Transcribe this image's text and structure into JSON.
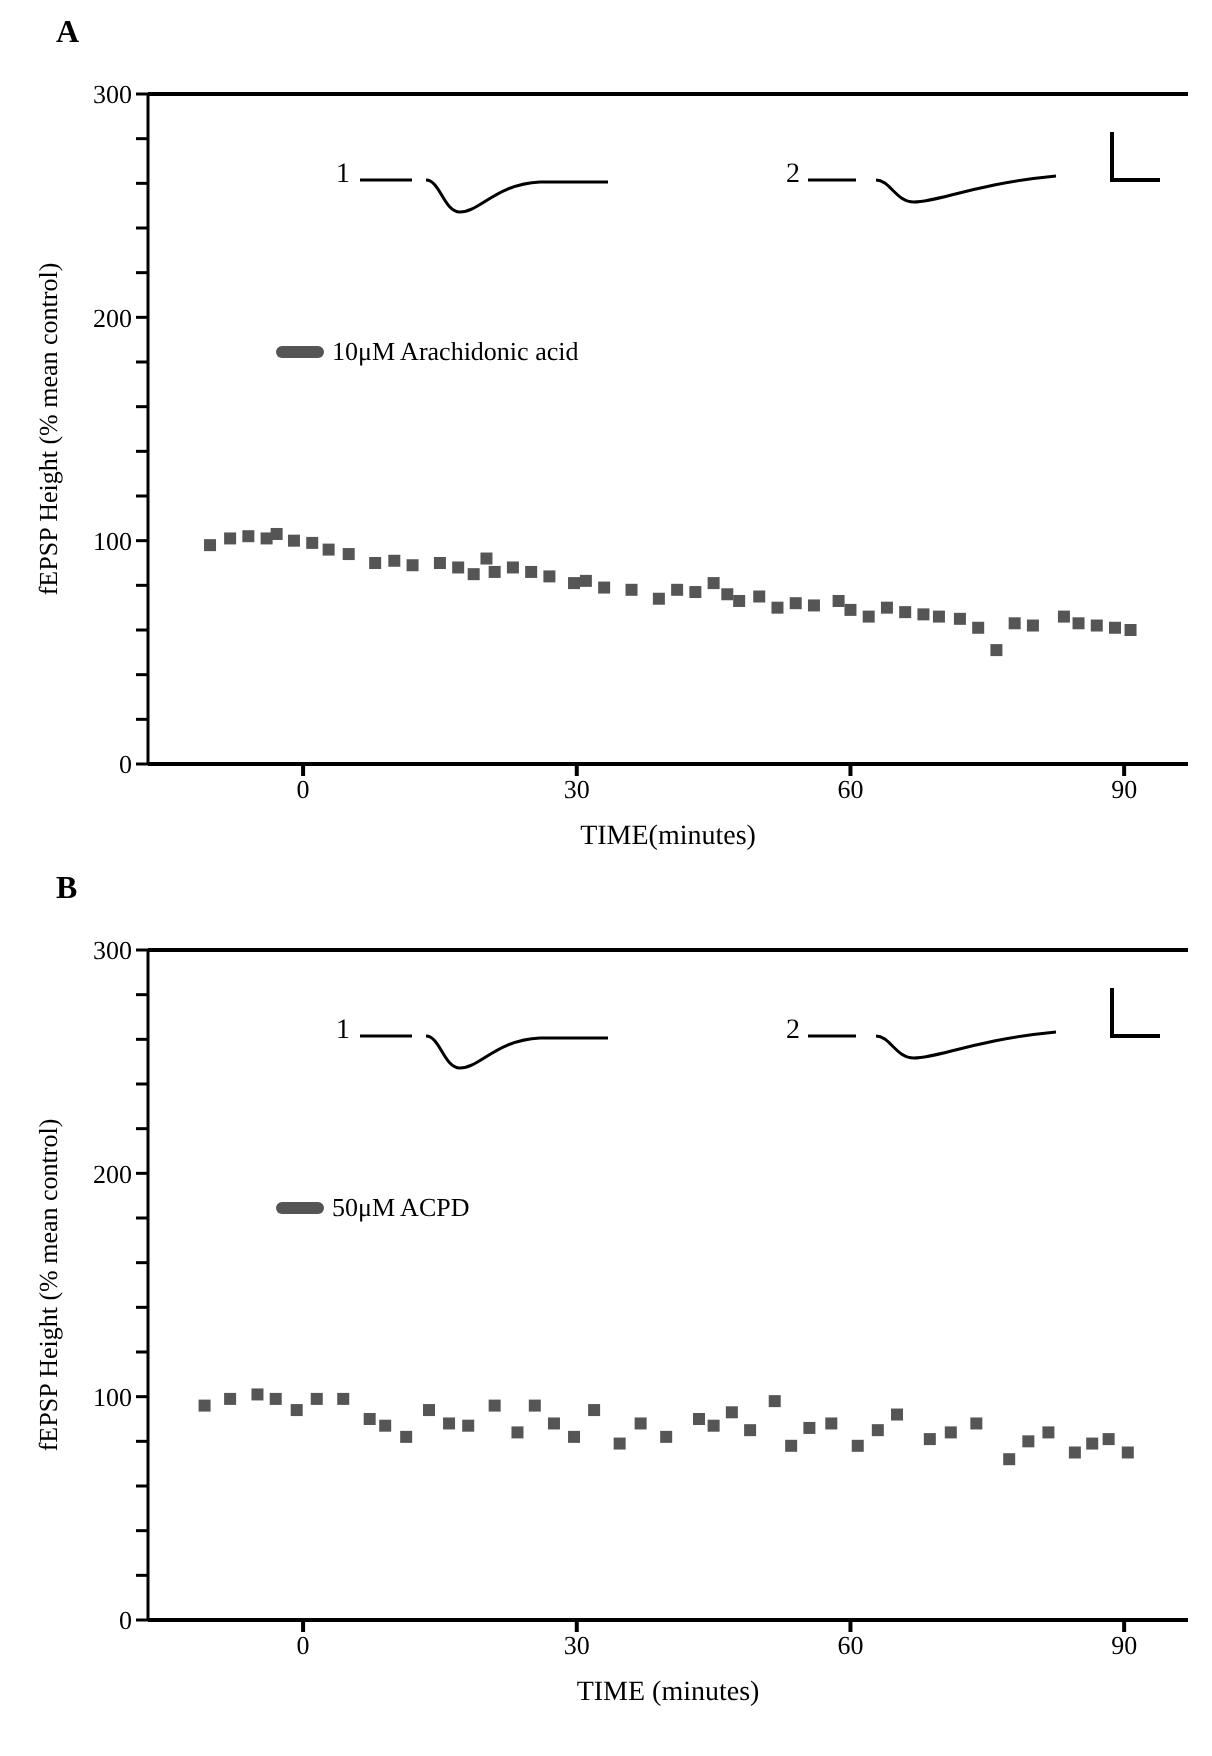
{
  "chart_data": [
    {
      "type": "scatter",
      "title": "A",
      "xlabel": "TIME(minutes)",
      "ylabel": "fEPSP Height (% mean control)",
      "xlim": [
        -17,
        97
      ],
      "xticks": [
        0,
        30,
        60,
        90
      ],
      "ylim": [
        0,
        300
      ],
      "yticks": [
        0,
        {
          "value": 20,
          "label": null
        },
        {
          "value": 40,
          "label": null
        },
        {
          "value": 60,
          "label": null
        },
        {
          "value": 80,
          "label": null
        },
        100,
        {
          "value": 120,
          "label": null
        },
        {
          "value": 140,
          "label": null
        },
        {
          "value": 160,
          "label": null
        },
        {
          "value": 180,
          "label": null
        },
        200,
        {
          "value": 220,
          "label": null
        },
        {
          "value": 240,
          "label": null
        },
        {
          "value": 260,
          "label": null
        },
        {
          "value": 280,
          "label": null
        },
        300
      ],
      "grid": false,
      "legend": "top left",
      "marker": "square",
      "annotations": [
        "1",
        "2"
      ],
      "x": [
        -10.2,
        -8,
        -6,
        -4,
        -2.9,
        -1,
        1,
        2.8,
        5,
        7.9,
        10,
        12,
        15,
        17,
        18.7,
        20.1,
        21,
        23,
        25,
        27,
        29.7,
        31,
        33,
        36,
        39,
        41,
        43,
        45,
        46.5,
        47.8,
        50,
        52,
        54,
        56,
        58.7,
        60,
        62,
        64,
        66,
        68,
        69.7,
        72,
        74,
        76,
        78,
        80,
        83.4,
        85,
        87,
        89,
        90.7
      ],
      "series": [
        {
          "name": "10μM Arachidonic acid",
          "color": "#555555",
          "values": [
            98,
            101,
            102,
            101,
            103,
            100,
            99,
            96,
            94,
            90,
            91,
            89,
            90,
            88,
            85,
            92,
            86,
            88,
            86,
            84,
            81,
            82,
            79,
            78,
            74,
            78,
            77,
            81,
            76,
            73,
            75,
            70,
            72,
            71,
            73,
            69,
            66,
            70,
            68,
            67,
            66,
            65,
            61,
            51,
            63,
            62,
            66,
            63,
            62,
            61,
            60
          ]
        }
      ]
    },
    {
      "type": "scatter",
      "title": "B",
      "xlabel": "TIME (minutes)",
      "ylabel": "fEPSP Height (% mean control)",
      "xlim": [
        -17,
        97
      ],
      "xticks": [
        0,
        30,
        60,
        90
      ],
      "ylim": [
        0,
        300
      ],
      "yticks": [
        0,
        {
          "value": 20,
          "label": null
        },
        {
          "value": 40,
          "label": null
        },
        {
          "value": 60,
          "label": null
        },
        {
          "value": 80,
          "label": null
        },
        100,
        {
          "value": 120,
          "label": null
        },
        {
          "value": 140,
          "label": null
        },
        {
          "value": 160,
          "label": null
        },
        {
          "value": 180,
          "label": null
        },
        200,
        {
          "value": 220,
          "label": null
        },
        {
          "value": 240,
          "label": null
        },
        {
          "value": 260,
          "label": null
        },
        {
          "value": 280,
          "label": null
        },
        300
      ],
      "grid": false,
      "legend": "top left",
      "marker": "square",
      "annotations": [
        "1",
        "2"
      ],
      "x": [
        -10.8,
        -8,
        -5,
        -3,
        -0.7,
        1.5,
        4.4,
        7.3,
        9,
        11.3,
        13.8,
        16,
        18.1,
        21,
        23.5,
        25.4,
        27.5,
        29.7,
        31.9,
        34.7,
        37,
        39.8,
        43.4,
        45,
        47,
        49,
        51.7,
        53.5,
        55.5,
        57.9,
        60.8,
        63,
        65.1,
        68.7,
        71,
        73.8,
        77.4,
        79.5,
        81.7,
        84.6,
        86.5,
        88.3,
        90.4
      ],
      "series": [
        {
          "name": "50μM ACPD",
          "color": "#555555",
          "values": [
            96,
            99,
            101,
            99,
            94,
            99,
            99,
            90,
            87,
            82,
            94,
            88,
            87,
            96,
            84,
            96,
            88,
            82,
            94,
            79,
            88,
            82,
            90,
            87,
            93,
            85,
            98,
            78,
            86,
            88,
            78,
            85,
            92,
            81,
            84,
            88,
            72,
            80,
            84,
            75,
            79,
            81,
            75
          ]
        }
      ]
    }
  ]
}
